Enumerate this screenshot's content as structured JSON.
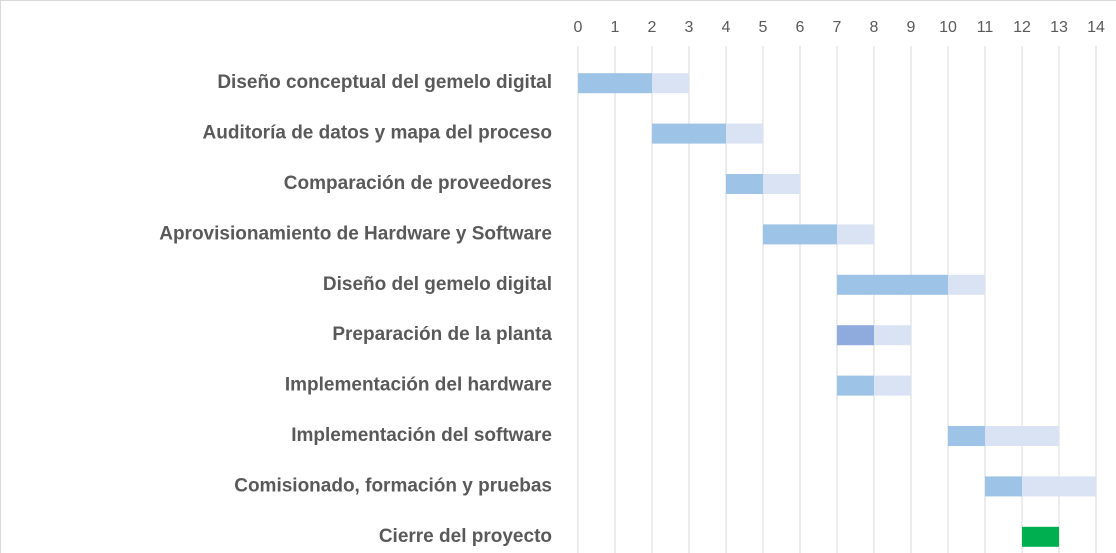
{
  "chart_data": {
    "type": "gantt",
    "categories": [
      "Diseño conceptual del gemelo digital",
      "Auditoría de datos y mapa del proceso",
      "Comparación de proveedores",
      "Aprovisionamiento de Hardware y Software",
      "Diseño del gemelo digital",
      "Preparación de la planta",
      "Implementación del hardware",
      "Implementación del software",
      "Comisionado, formación y pruebas",
      "Cierre del proyecto"
    ],
    "series": [
      {
        "color": "none",
        "values": [
          0,
          2,
          4,
          5,
          7,
          7,
          7,
          10,
          11,
          12
        ]
      },
      {
        "color": "#9dc3e6",
        "colors": [
          "#9dc3e6",
          "#9dc3e6",
          "#9dc3e6",
          "#9dc3e6",
          "#9dc3e6",
          "#8faadc",
          "#9dc3e6",
          "#9dc3e6",
          "#9dc3e6",
          "#00b050"
        ],
        "values": [
          2,
          2,
          1,
          2,
          3,
          1,
          1,
          1,
          1,
          1
        ]
      },
      {
        "color": "#dae3f3",
        "values": [
          1,
          1,
          1,
          1,
          1,
          1,
          1,
          2,
          2,
          0
        ]
      }
    ],
    "xlim": [
      0,
      14
    ],
    "xticks": [
      0,
      1,
      2,
      3,
      4,
      5,
      6,
      7,
      8,
      9,
      10,
      11,
      12,
      13,
      14
    ],
    "grid": true
  }
}
